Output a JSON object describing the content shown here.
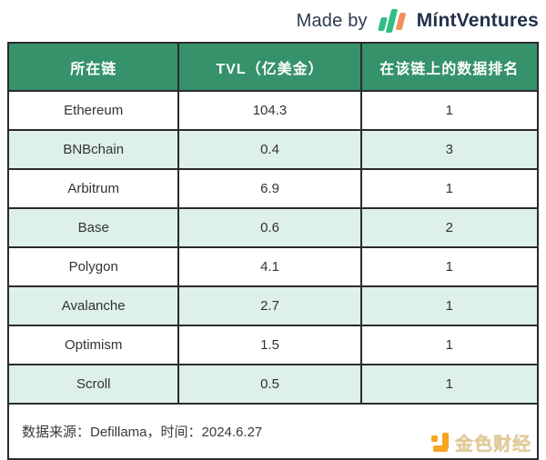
{
  "topbar": {
    "made_by": "Made by",
    "brand": "MíntVentures"
  },
  "chart_data": {
    "type": "table",
    "columns": [
      "所在链",
      "TVL（亿美金）",
      "在该链上的数据排名"
    ],
    "rows": [
      [
        "Ethereum",
        "104.3",
        "1"
      ],
      [
        "BNBchain",
        "0.4",
        "3"
      ],
      [
        "Arbitrum",
        "6.9",
        "1"
      ],
      [
        "Base",
        "0.6",
        "2"
      ],
      [
        "Polygon",
        "4.1",
        "1"
      ],
      [
        "Avalanche",
        "2.7",
        "1"
      ],
      [
        "Optimism",
        "1.5",
        "1"
      ],
      [
        "Scroll",
        "0.5",
        "1"
      ]
    ],
    "source_note": "数据来源：Defillama，时间：2024.6.27",
    "layout": {
      "header_position": "top",
      "alternating_rows": true
    }
  },
  "footer": {
    "source": "数据来源：Defillama，时间：2024.6.27"
  },
  "watermark": {
    "brand": "金色财经"
  },
  "colors": {
    "header_green": "#35926b",
    "alt_row_mint": "#ddf0e9",
    "border_dark": "#2b2b2b",
    "logo_green": "#2fbe85",
    "logo_orange": "#f0915f",
    "watermark_orange": "#f5a623",
    "brand_navy": "#22304a"
  }
}
